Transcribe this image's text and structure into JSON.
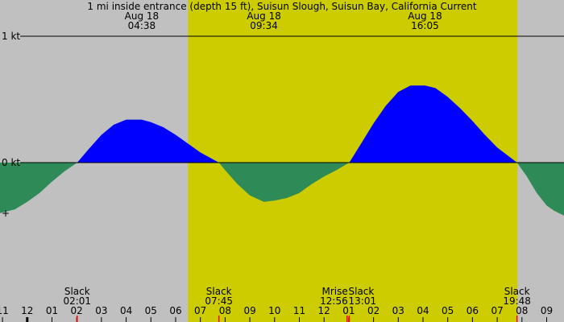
{
  "chart_data": {
    "type": "area",
    "title": "1 mi inside entrance (depth 15 ft), Suisun Slough, Suisun Bay, California Current",
    "colors": {
      "background": "#c0c0c0",
      "daylight": "#cccc00",
      "flood": "#0000ff",
      "ebb": "#2e8b57",
      "sunrise_tick": "#ff0000"
    },
    "x_domain_hours": [
      -1.1,
      21.7
    ],
    "y_domain_kt": [
      -0.4,
      1.0
    ],
    "y_ticks": [
      {
        "value": 1,
        "label": "1 kt"
      },
      {
        "value": 0,
        "label": "0 kt"
      },
      {
        "value": -0.4,
        "label": "+"
      }
    ],
    "hour_tick_labels": [
      "11",
      "12",
      "01",
      "02",
      "03",
      "04",
      "05",
      "06",
      "07",
      "08",
      "09",
      "10",
      "11",
      "12",
      "01",
      "02",
      "03",
      "04",
      "05",
      "06",
      "07",
      "08",
      "09"
    ],
    "hour_tick_start": -1,
    "daylight_hours": [
      6.5,
      19.82
    ],
    "peak_labels": [
      {
        "date": "Aug 18",
        "time": "04:38",
        "hour": 4.63
      },
      {
        "date": "Aug 18",
        "time": "09:34",
        "hour": 9.57
      },
      {
        "date": "Aug 18",
        "time": "16:05",
        "hour": 16.08
      }
    ],
    "events": [
      {
        "label": "Slack",
        "time": "02:01",
        "hour": 2.02
      },
      {
        "label": "Slack",
        "time": "07:45",
        "hour": 7.75
      },
      {
        "label": "Mrise",
        "time": "12:56",
        "hour": 12.93
      },
      {
        "label": "Slack",
        "time": "13:01",
        "hour": 13.02
      },
      {
        "label": "Slack",
        "time": "19:48",
        "hour": 19.8
      }
    ],
    "series": [
      {
        "x": [
          -1.1,
          -0.5,
          0,
          0.5,
          1,
          1.5,
          2.02,
          2.5,
          3,
          3.5,
          4,
          4.63,
          5,
          5.5,
          6,
          6.5,
          7,
          7.75,
          8,
          8.5,
          9,
          9.57,
          10,
          10.5,
          11,
          11.5,
          12,
          12.5,
          13.02,
          13.5,
          14,
          14.5,
          15,
          15.5,
          16.08,
          16.5,
          17,
          17.5,
          18,
          18.5,
          19,
          19.8,
          20.2,
          20.6,
          21,
          21.3,
          21.7
        ],
        "y": [
          -0.4,
          -0.37,
          -0.31,
          -0.24,
          -0.15,
          -0.07,
          0,
          0.11,
          0.22,
          0.3,
          0.34,
          0.34,
          0.32,
          0.28,
          0.22,
          0.15,
          0.08,
          0,
          -0.06,
          -0.17,
          -0.26,
          -0.31,
          -0.3,
          -0.28,
          -0.24,
          -0.17,
          -0.11,
          -0.06,
          0,
          0.15,
          0.31,
          0.45,
          0.56,
          0.61,
          0.61,
          0.59,
          0.52,
          0.43,
          0.33,
          0.22,
          0.12,
          0,
          -0.11,
          -0.24,
          -0.34,
          -0.38,
          -0.42
        ]
      }
    ]
  }
}
